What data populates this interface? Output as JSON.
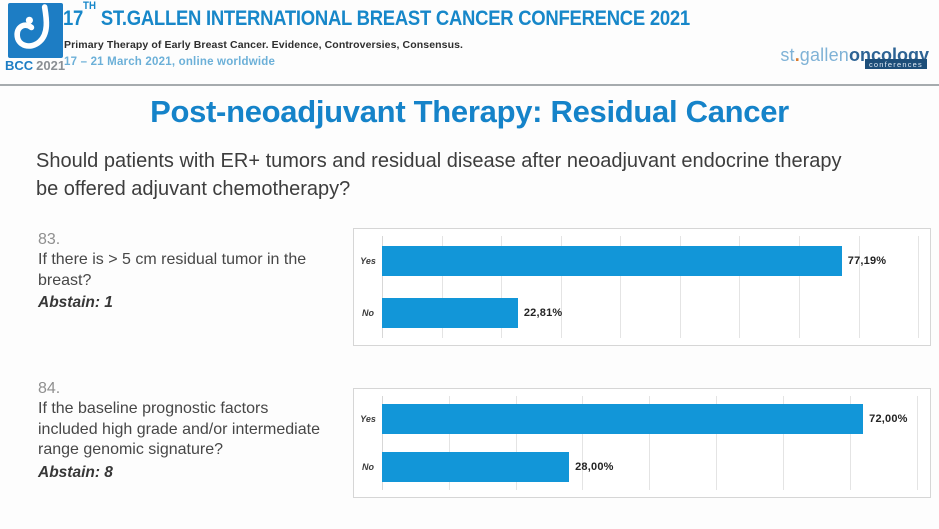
{
  "colors": {
    "accent_blue": "#1583c9",
    "bar_blue": "#1296d8",
    "logo_blue": "#1d7dc4",
    "light_blue": "#6cb0d8",
    "brand_light": "#7fb2d6",
    "brand_dark": "#2d6394",
    "brand_box": "#1d4e79",
    "orange_dot": "#d97b2f",
    "text_dark": "#3d3d3d",
    "number_gray": "#8f8f8f"
  },
  "header": {
    "logo": {
      "bcc": "BCC",
      "year": "2021"
    },
    "title": {
      "num": "17",
      "sup": "TH",
      "rest": " ST.GALLEN INTERNATIONAL BREAST CANCER CONFERENCE 2021"
    },
    "subtitle": "Primary Therapy of Early Breast Cancer. Evidence, Controversies, Consensus.",
    "dates": "17 – 21 March 2021, online worldwide",
    "brand": {
      "st": "st",
      "dot": ".",
      "gallen": "gallen",
      "oncology": "oncology",
      "conferences": "conferences"
    }
  },
  "slide": {
    "title": "Post-neoadjuvant Therapy: Residual Cancer",
    "question": "Should patients with ER+ tumors and residual disease after neoadjuvant endocrine therapy be offered adjuvant chemotherapy?"
  },
  "polls": [
    {
      "number": "83.",
      "question": "If there is > 5 cm residual tumor in the breast?",
      "abstain": "Abstain: 1"
    },
    {
      "number": "84.",
      "question": "If the baseline prognostic factors included high grade and/or intermediate range genomic signature?",
      "abstain": "Abstain: 8"
    }
  ],
  "chart_data": [
    {
      "type": "bar",
      "orientation": "horizontal",
      "title": "",
      "categories": [
        "Yes",
        "No"
      ],
      "values": [
        77.19,
        22.81
      ],
      "value_labels": [
        "77,19%",
        "22,81%"
      ],
      "xlim": [
        0,
        92
      ],
      "grid_step": 10,
      "grid": true,
      "legend": false,
      "bar_color": "#1296d8"
    },
    {
      "type": "bar",
      "orientation": "horizontal",
      "title": "",
      "categories": [
        "Yes",
        "No"
      ],
      "values": [
        72.0,
        28.0
      ],
      "value_labels": [
        "72,00%",
        "28,00%"
      ],
      "xlim": [
        0,
        82
      ],
      "grid_step": 10,
      "grid": true,
      "legend": false,
      "bar_color": "#1296d8"
    }
  ]
}
